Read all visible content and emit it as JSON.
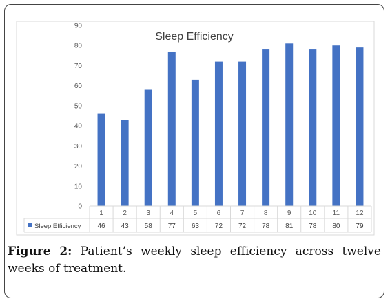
{
  "chart_data": {
    "type": "bar",
    "title": "Sleep Efficiency",
    "categories": [
      "1",
      "2",
      "3",
      "4",
      "5",
      "6",
      "7",
      "8",
      "9",
      "10",
      "11",
      "12"
    ],
    "series": [
      {
        "name": "Sleep Efficiency",
        "values": [
          46,
          43,
          58,
          77,
          63,
          72,
          72,
          78,
          81,
          78,
          80,
          79
        ],
        "color": "#4472C4"
      }
    ],
    "y_ticks": [
      0,
      10,
      20,
      30,
      40,
      50,
      60,
      70,
      80,
      90
    ],
    "ylim": [
      0,
      90
    ],
    "data_table": true,
    "grid": false
  },
  "caption": {
    "label": "Figure 2:",
    "text": "Patient’s weekly sleep efficiency across twelve weeks of treatment."
  }
}
